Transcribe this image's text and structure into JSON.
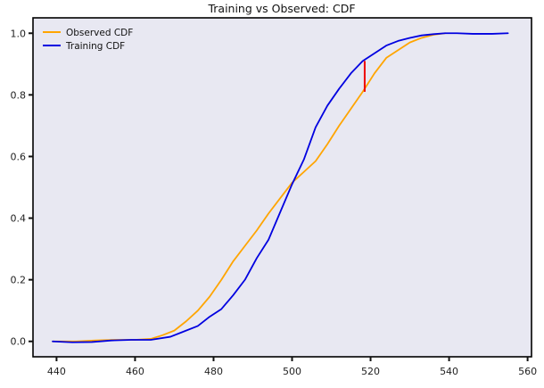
{
  "chart_data": {
    "type": "line",
    "title": "Training vs Observed: CDF",
    "xlabel": "",
    "ylabel": "",
    "xlim": [
      434,
      561
    ],
    "ylim": [
      -0.05,
      1.05
    ],
    "xticks": [
      440,
      460,
      480,
      500,
      520,
      540,
      560
    ],
    "yticks": [
      0.0,
      0.2,
      0.4,
      0.6,
      0.8,
      1.0
    ],
    "xtick_labels": [
      "440",
      "460",
      "480",
      "500",
      "520",
      "540",
      "560"
    ],
    "ytick_labels": [
      "0.0",
      "0.2",
      "0.4",
      "0.6",
      "0.8",
      "1.0"
    ],
    "grid": false,
    "legend_position": "top-left",
    "background": "#e8e8f2",
    "series": [
      {
        "name": "Observed CDF",
        "color": "#ffa500",
        "x": [
          439,
          445,
          450,
          455,
          460,
          464,
          467,
          470,
          473,
          476,
          479,
          482,
          485,
          488,
          491,
          494,
          497,
          500,
          503,
          506,
          509,
          512,
          515,
          518,
          521,
          524,
          527,
          530,
          533,
          536,
          539
        ],
        "y": [
          0.0,
          0.0,
          0.003,
          0.005,
          0.005,
          0.008,
          0.02,
          0.035,
          0.065,
          0.1,
          0.145,
          0.2,
          0.26,
          0.31,
          0.36,
          0.415,
          0.465,
          0.515,
          0.55,
          0.585,
          0.64,
          0.7,
          0.755,
          0.81,
          0.87,
          0.92,
          0.945,
          0.97,
          0.985,
          0.995,
          1.0
        ]
      },
      {
        "name": "Training CDF",
        "color": "#0000e0",
        "x": [
          439,
          444,
          449,
          454,
          459,
          464,
          469,
          472,
          476,
          479,
          482,
          485,
          488,
          491,
          494,
          497,
          500,
          503,
          506,
          509,
          512,
          515,
          518,
          521,
          524,
          527,
          530,
          533,
          536,
          539,
          542,
          546,
          551,
          555
        ],
        "y": [
          0.0,
          -0.003,
          -0.002,
          0.003,
          0.005,
          0.005,
          0.015,
          0.03,
          0.05,
          0.08,
          0.105,
          0.15,
          0.2,
          0.27,
          0.33,
          0.42,
          0.51,
          0.59,
          0.695,
          0.765,
          0.82,
          0.87,
          0.91,
          0.935,
          0.96,
          0.975,
          0.985,
          0.993,
          0.997,
          1.0,
          1.0,
          0.998,
          0.998,
          1.0
        ]
      }
    ],
    "annotations": [
      {
        "type": "ks_statistic_line",
        "color": "#ee0000",
        "x": 518.5,
        "y_from": 0.81,
        "y_to": 0.91
      }
    ]
  }
}
